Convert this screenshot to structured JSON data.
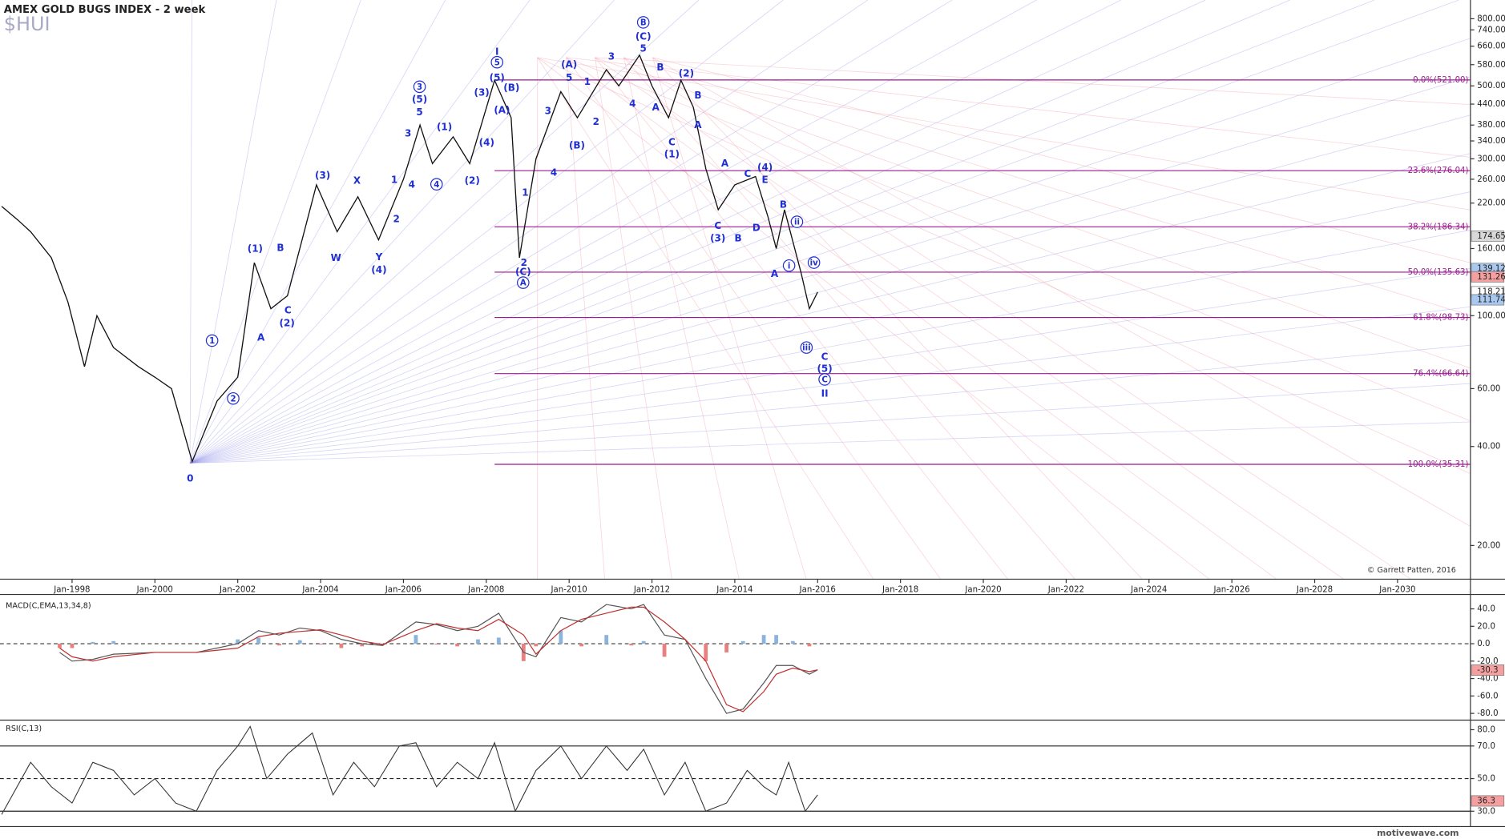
{
  "title": "AMEX GOLD BUGS INDEX - 2 week",
  "symbol": "$HUI",
  "watermark": "motivewave.com",
  "chart_data": [
    {
      "type": "line",
      "log_scale": true,
      "color": "#111111",
      "xlim": [
        1996.26,
        2031.76
      ],
      "ylim": [
        15.8,
        894
      ],
      "xticks": [
        {
          "value": 1998,
          "label": "Jan-1998"
        },
        {
          "value": 2000,
          "label": "Jan-2000"
        },
        {
          "value": 2002,
          "label": "Jan-2002"
        },
        {
          "value": 2004,
          "label": "Jan-2004"
        },
        {
          "value": 2006,
          "label": "Jan-2006"
        },
        {
          "value": 2008,
          "label": "Jan-2008"
        },
        {
          "value": 2010,
          "label": "Jan-2010"
        },
        {
          "value": 2012,
          "label": "Jan-2012"
        },
        {
          "value": 2014,
          "label": "Jan-2014"
        },
        {
          "value": 2016,
          "label": "Jan-2016"
        },
        {
          "value": 2018,
          "label": "Jan-2018"
        },
        {
          "value": 2020,
          "label": "Jan-2020"
        },
        {
          "value": 2022,
          "label": "Jan-2022"
        },
        {
          "value": 2024,
          "label": "Jan-2024"
        },
        {
          "value": 2026,
          "label": "Jan-2026"
        },
        {
          "value": 2028,
          "label": "Jan-2028"
        },
        {
          "value": 2030,
          "label": "Jan-2030"
        }
      ],
      "yticks": [
        {
          "value": 800,
          "label": "800.00"
        },
        {
          "value": 740,
          "label": "740.00"
        },
        {
          "value": 660,
          "label": "660.00"
        },
        {
          "value": 580,
          "label": "580.00"
        },
        {
          "value": 500,
          "label": "500.00"
        },
        {
          "value": 440,
          "label": "440.00"
        },
        {
          "value": 380,
          "label": "380.00"
        },
        {
          "value": 340,
          "label": "340.00"
        },
        {
          "value": 300,
          "label": "300.00"
        },
        {
          "value": 260,
          "label": "260.00"
        },
        {
          "value": 220,
          "label": "220.00"
        },
        {
          "value": 160,
          "label": "160.00"
        },
        {
          "value": 100,
          "label": "100.00"
        },
        {
          "value": 60,
          "label": "60.00"
        },
        {
          "value": 40,
          "label": "40.00"
        },
        {
          "value": 20,
          "label": "20.00"
        }
      ],
      "x": [
        1996.3,
        1996.7,
        1997.0,
        1997.5,
        1997.9,
        1998.3,
        1998.6,
        1999.0,
        1999.6,
        2000.0,
        2000.4,
        2000.9,
        2001.5,
        2002.0,
        2002.4,
        2002.8,
        2003.2,
        2003.9,
        2004.4,
        2004.9,
        2005.4,
        2006.0,
        2006.4,
        2006.7,
        2007.2,
        2007.6,
        2008.2,
        2008.6,
        2008.8,
        2009.2,
        2009.8,
        2010.2,
        2010.9,
        2011.2,
        2011.7,
        2012.0,
        2012.4,
        2012.7,
        2013.0,
        2013.3,
        2013.6,
        2014.0,
        2014.5,
        2014.8,
        2015.0,
        2015.2,
        2015.6,
        2015.8,
        2016.0
      ],
      "values": [
        215,
        195,
        180,
        150,
        110,
        70,
        100,
        80,
        70,
        65,
        60,
        36,
        55,
        65,
        145,
        105,
        115,
        250,
        180,
        230,
        170,
        260,
        380,
        290,
        350,
        290,
        520,
        400,
        150,
        300,
        480,
        400,
        560,
        500,
        620,
        500,
        400,
        520,
        430,
        280,
        210,
        250,
        265,
        200,
        160,
        210,
        135,
        105,
        118
      ],
      "fib_from": 2008.2,
      "fib_color": "#9b1b8e",
      "fib_levels": [
        {
          "value": 521,
          "label": "0.0%(521.00)"
        },
        {
          "value": 276.04,
          "label": "23.6%(276.04)"
        },
        {
          "value": 186.34,
          "label": "38.2%(186.34)"
        },
        {
          "value": 135.63,
          "label": "50.0%(135.63)"
        },
        {
          "value": 98.73,
          "label": "61.8%(98.73)"
        },
        {
          "value": 66.64,
          "label": "76.4%(66.64)"
        },
        {
          "value": 35.31,
          "label": "100.0%(35.31)"
        }
      ],
      "price_tags": [
        {
          "value": 174.65,
          "color": "#d8d8d8"
        },
        {
          "value": 139.12,
          "color": "#a8c8f0"
        },
        {
          "value": 131.26,
          "color": "#f4a0a0"
        },
        {
          "value": 118.21,
          "color": "#ffffff"
        },
        {
          "value": 111.74,
          "color": "#a8c8f0"
        }
      ],
      "wave_color": "#1f2fd0",
      "wave_labels": [
        {
          "text": "0",
          "x": 2000.85,
          "y": 32
        },
        {
          "text": "1",
          "x": 2001.38,
          "y": 84,
          "circled": true
        },
        {
          "text": "2",
          "x": 2001.89,
          "y": 56,
          "circled": true
        },
        {
          "text": "A",
          "x": 2002.56,
          "y": 86
        },
        {
          "text": "(1)",
          "x": 2002.42,
          "y": 160
        },
        {
          "text": "B",
          "x": 2003.03,
          "y": 161
        },
        {
          "text": "C",
          "x": 2003.21,
          "y": 104
        },
        {
          "text": "(2)",
          "x": 2003.19,
          "y": 95
        },
        {
          "text": "(3)",
          "x": 2004.05,
          "y": 267
        },
        {
          "text": "W",
          "x": 2004.37,
          "y": 150
        },
        {
          "text": "X",
          "x": 2004.88,
          "y": 258
        },
        {
          "text": "Y",
          "x": 2005.41,
          "y": 151
        },
        {
          "text": "(4)",
          "x": 2005.41,
          "y": 138
        },
        {
          "text": "1",
          "x": 2005.78,
          "y": 259
        },
        {
          "text": "2",
          "x": 2005.83,
          "y": 197
        },
        {
          "text": "3",
          "x": 2006.11,
          "y": 359
        },
        {
          "text": "4",
          "x": 2006.2,
          "y": 251
        },
        {
          "text": "5",
          "x": 2006.39,
          "y": 416
        },
        {
          "text": "(5)",
          "x": 2006.39,
          "y": 455
        },
        {
          "text": "3",
          "x": 2006.39,
          "y": 497,
          "circled": true
        },
        {
          "text": "4",
          "x": 2006.8,
          "y": 251,
          "circled": true
        },
        {
          "text": "(1)",
          "x": 2006.99,
          "y": 375
        },
        {
          "text": "(2)",
          "x": 2007.66,
          "y": 258
        },
        {
          "text": "(3)",
          "x": 2007.89,
          "y": 477
        },
        {
          "text": "(4)",
          "x": 2008.01,
          "y": 336
        },
        {
          "text": "(A)",
          "x": 2008.38,
          "y": 422
        },
        {
          "text": "(5)",
          "x": 2008.26,
          "y": 530
        },
        {
          "text": "5",
          "x": 2008.26,
          "y": 590,
          "circled": true
        },
        {
          "text": "I",
          "x": 2008.26,
          "y": 635
        },
        {
          "text": "(B)",
          "x": 2008.61,
          "y": 494
        },
        {
          "text": "1",
          "x": 2008.94,
          "y": 237
        },
        {
          "text": "2",
          "x": 2008.91,
          "y": 145
        },
        {
          "text": "(C)",
          "x": 2008.89,
          "y": 136
        },
        {
          "text": "A",
          "x": 2008.89,
          "y": 126,
          "circled": true
        },
        {
          "text": "3",
          "x": 2009.49,
          "y": 420
        },
        {
          "text": "4",
          "x": 2009.63,
          "y": 273
        },
        {
          "text": "(A)",
          "x": 2010.0,
          "y": 581
        },
        {
          "text": "5",
          "x": 2010.0,
          "y": 530
        },
        {
          "text": "(B)",
          "x": 2010.19,
          "y": 330
        },
        {
          "text": "1",
          "x": 2010.44,
          "y": 515
        },
        {
          "text": "2",
          "x": 2010.65,
          "y": 389
        },
        {
          "text": "3",
          "x": 2011.02,
          "y": 614
        },
        {
          "text": "4",
          "x": 2011.53,
          "y": 441
        },
        {
          "text": "B",
          "x": 2011.79,
          "y": 780,
          "circled": true
        },
        {
          "text": "(C)",
          "x": 2011.79,
          "y": 708
        },
        {
          "text": "5",
          "x": 2011.79,
          "y": 651
        },
        {
          "text": "B",
          "x": 2012.2,
          "y": 570
        },
        {
          "text": "A",
          "x": 2012.09,
          "y": 430
        },
        {
          "text": "(2)",
          "x": 2012.83,
          "y": 546
        },
        {
          "text": "B",
          "x": 2013.11,
          "y": 469
        },
        {
          "text": "A",
          "x": 2013.11,
          "y": 381
        },
        {
          "text": "C",
          "x": 2012.48,
          "y": 337
        },
        {
          "text": "(1)",
          "x": 2012.48,
          "y": 310
        },
        {
          "text": "A",
          "x": 2013.76,
          "y": 291
        },
        {
          "text": "C",
          "x": 2014.31,
          "y": 270
        },
        {
          "text": "(4)",
          "x": 2014.73,
          "y": 283
        },
        {
          "text": "E",
          "x": 2014.73,
          "y": 259
        },
        {
          "text": "B",
          "x": 2015.17,
          "y": 218
        },
        {
          "text": "C",
          "x": 2013.59,
          "y": 188
        },
        {
          "text": "(3)",
          "x": 2013.59,
          "y": 172
        },
        {
          "text": "B",
          "x": 2014.08,
          "y": 172
        },
        {
          "text": "D",
          "x": 2014.52,
          "y": 185
        },
        {
          "text": "ii",
          "x": 2015.5,
          "y": 193,
          "circled": true
        },
        {
          "text": "i",
          "x": 2015.31,
          "y": 142,
          "circled": true
        },
        {
          "text": "iv",
          "x": 2015.91,
          "y": 145,
          "circled": true
        },
        {
          "text": "iii",
          "x": 2015.73,
          "y": 80,
          "circled": true
        },
        {
          "text": "A",
          "x": 2014.96,
          "y": 134
        },
        {
          "text": "C",
          "x": 2016.17,
          "y": 75
        },
        {
          "text": "(5)",
          "x": 2016.17,
          "y": 69
        },
        {
          "text": "C",
          "x": 2016.17,
          "y": 64,
          "circled": true
        },
        {
          "text": "II",
          "x": 2016.17,
          "y": 58
        }
      ],
      "copyright": "© Garrett Patten, 2016"
    },
    {
      "type": "macd",
      "title": "MACD(C,EMA,13,34,8)",
      "xlim": [
        1996.26,
        2031.76
      ],
      "ylim": [
        -86.6,
        54.3
      ],
      "yticks": [
        {
          "value": 40,
          "label": "40.0"
        },
        {
          "value": 20,
          "label": "20.0"
        },
        {
          "value": 0,
          "label": "0.0"
        },
        {
          "value": -20,
          "label": "-20.0"
        },
        {
          "value": -40,
          "label": "-40.0"
        },
        {
          "value": -60,
          "label": "-60.0"
        },
        {
          "value": -80,
          "label": "-80.0"
        }
      ],
      "x": [
        1997.7,
        1998.0,
        1998.5,
        1999.0,
        2000.0,
        2001.0,
        2002.0,
        2002.5,
        2003.0,
        2003.5,
        2004.0,
        2004.5,
        2005.0,
        2005.5,
        2006.3,
        2006.8,
        2007.3,
        2007.8,
        2008.3,
        2008.9,
        2009.2,
        2009.8,
        2010.3,
        2010.9,
        2011.5,
        2011.8,
        2012.3,
        2012.8,
        2013.3,
        2013.8,
        2014.2,
        2014.7,
        2015.0,
        2015.4,
        2015.8,
        2016.0
      ],
      "series": [
        {
          "color": "#555555",
          "values": [
            -10,
            -20,
            -18,
            -12,
            -10,
            -10,
            0,
            15,
            10,
            18,
            15,
            5,
            0,
            -2,
            25,
            22,
            15,
            20,
            35,
            -10,
            -15,
            30,
            25,
            45,
            40,
            45,
            10,
            5,
            -40,
            -80,
            -75,
            -45,
            -25,
            -25,
            -35,
            -30
          ]
        },
        {
          "color": "#c03030",
          "values": [
            -5,
            -15,
            -20,
            -15,
            -10,
            -10,
            -5,
            8,
            12,
            14,
            16,
            10,
            3,
            -1,
            15,
            23,
            18,
            15,
            28,
            10,
            -12,
            15,
            28,
            35,
            42,
            42,
            25,
            5,
            -20,
            -70,
            -78,
            -55,
            -35,
            -28,
            -32,
            -30
          ]
        }
      ],
      "histogram": [
        -5,
        -5,
        2,
        3,
        0,
        0,
        5,
        7,
        -2,
        4,
        -1,
        -5,
        -3,
        -1,
        10,
        -1,
        -3,
        5,
        7,
        -20,
        -3,
        15,
        -3,
        10,
        -2,
        3,
        -15,
        0,
        -20,
        -10,
        3,
        10,
        10,
        3,
        -3,
        0
      ],
      "hist_colors": {
        "positive": "#8ab4dc",
        "negative": "#e88080"
      },
      "tags": [
        {
          "value": -30.3,
          "color": "#f4a0a0"
        }
      ]
    },
    {
      "type": "rsi",
      "title": "RSI(C,13)",
      "xlim": [
        1996.26,
        2031.76
      ],
      "ylim": [
        20.6,
        85.3
      ],
      "color": "#333333",
      "yticks": [
        {
          "value": 80,
          "label": "80.0"
        },
        {
          "value": 70,
          "label": "70.0"
        },
        {
          "value": 50,
          "label": "50.0"
        },
        {
          "value": 30,
          "label": "30.0"
        }
      ],
      "levels": [
        {
          "value": 70,
          "style": "solid"
        },
        {
          "value": 50,
          "style": "dashed"
        },
        {
          "value": 30,
          "style": "solid"
        }
      ],
      "x": [
        1996.3,
        1997,
        1997.5,
        1998,
        1998.5,
        1999,
        1999.5,
        2000,
        2000.5,
        2001,
        2001.5,
        2002,
        2002.3,
        2002.7,
        2003.2,
        2003.8,
        2004.3,
        2004.8,
        2005.3,
        2005.9,
        2006.3,
        2006.8,
        2007.3,
        2007.8,
        2008.2,
        2008.7,
        2009.2,
        2009.8,
        2010.3,
        2010.9,
        2011.4,
        2011.8,
        2012.3,
        2012.8,
        2013.3,
        2013.8,
        2014.3,
        2014.7,
        2015.0,
        2015.3,
        2015.7,
        2016.0
      ],
      "values": [
        28,
        60,
        45,
        35,
        60,
        55,
        40,
        50,
        35,
        30,
        55,
        70,
        82,
        50,
        65,
        78,
        40,
        60,
        45,
        70,
        72,
        45,
        60,
        50,
        72,
        30,
        55,
        70,
        50,
        70,
        55,
        68,
        40,
        60,
        30,
        35,
        55,
        45,
        40,
        60,
        30,
        40
      ],
      "tags": [
        {
          "value": 36.3,
          "color": "#f4a0a0"
        }
      ]
    }
  ]
}
